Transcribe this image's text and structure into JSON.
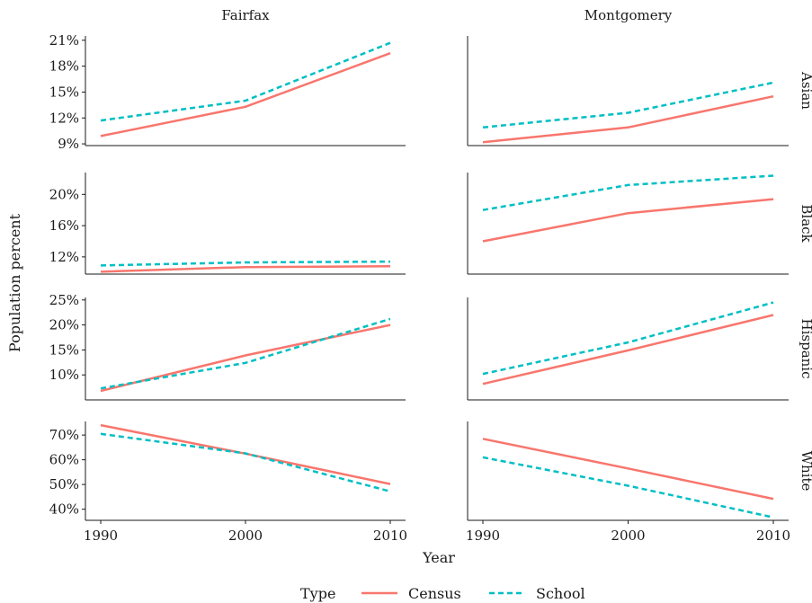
{
  "chart_data": {
    "type": "line",
    "facets": {
      "columns": [
        "Fairfax",
        "Montgomery"
      ],
      "rows": [
        "Asian",
        "Black",
        "Hispanic",
        "White"
      ]
    },
    "x": [
      1990,
      2000,
      2010
    ],
    "x_ticks": [
      "1990",
      "2000",
      "2010"
    ],
    "xlabel": "Year",
    "ylabel": "Population percent",
    "legend": {
      "title": "Type",
      "position": "bottom",
      "entries": [
        {
          "name": "Census",
          "color": "#F8766D",
          "dash": "solid"
        },
        {
          "name": "School",
          "color": "#00BFC4",
          "dash": "dashed"
        }
      ]
    },
    "rows_data": [
      {
        "name": "Asian",
        "ylim": [
          8.8,
          21.5
        ],
        "y_ticks": [
          9,
          12,
          15,
          18,
          21
        ],
        "y_tick_labels": [
          "9%",
          "12%",
          "15%",
          "18%",
          "21%"
        ],
        "panels": {
          "Fairfax": {
            "Census": [
              9.9,
              13.3,
              19.5
            ],
            "School": [
              11.7,
              14.0,
              20.7
            ]
          },
          "Montgomery": {
            "Census": [
              9.2,
              10.9,
              14.5
            ],
            "School": [
              10.9,
              12.6,
              16.1
            ]
          }
        }
      },
      {
        "name": "Black",
        "ylim": [
          9.8,
          22.8
        ],
        "y_ticks": [
          12,
          16,
          20
        ],
        "y_tick_labels": [
          "12%",
          "16%",
          "20%"
        ],
        "panels": {
          "Fairfax": {
            "Census": [
              10.1,
              10.7,
              10.8
            ],
            "School": [
              10.9,
              11.3,
              11.4
            ]
          },
          "Montgomery": {
            "Census": [
              14.0,
              17.6,
              19.4
            ],
            "School": [
              18.0,
              21.2,
              22.4
            ]
          }
        }
      },
      {
        "name": "Hispanic",
        "ylim": [
          5.0,
          25.5
        ],
        "y_ticks": [
          10,
          15,
          20,
          25
        ],
        "y_tick_labels": [
          "10%",
          "15%",
          "20%",
          "25%"
        ],
        "panels": {
          "Fairfax": {
            "Census": [
              6.8,
              13.9,
              20.0
            ],
            "School": [
              7.3,
              12.4,
              21.2
            ]
          },
          "Montgomery": {
            "Census": [
              8.2,
              14.9,
              22.0
            ],
            "School": [
              10.2,
              16.5,
              24.5
            ]
          }
        }
      },
      {
        "name": "White",
        "ylim": [
          35.5,
          75.5
        ],
        "y_ticks": [
          40,
          50,
          60,
          70
        ],
        "y_tick_labels": [
          "40%",
          "50%",
          "60%",
          "70%"
        ],
        "panels": {
          "Fairfax": {
            "Census": [
              74.0,
              62.5,
              50.2
            ],
            "School": [
              70.5,
              62.6,
              47.2
            ]
          },
          "Montgomery": {
            "Census": [
              68.5,
              56.5,
              44.2
            ],
            "School": [
              61.0,
              49.5,
              36.7
            ]
          }
        }
      }
    ]
  }
}
